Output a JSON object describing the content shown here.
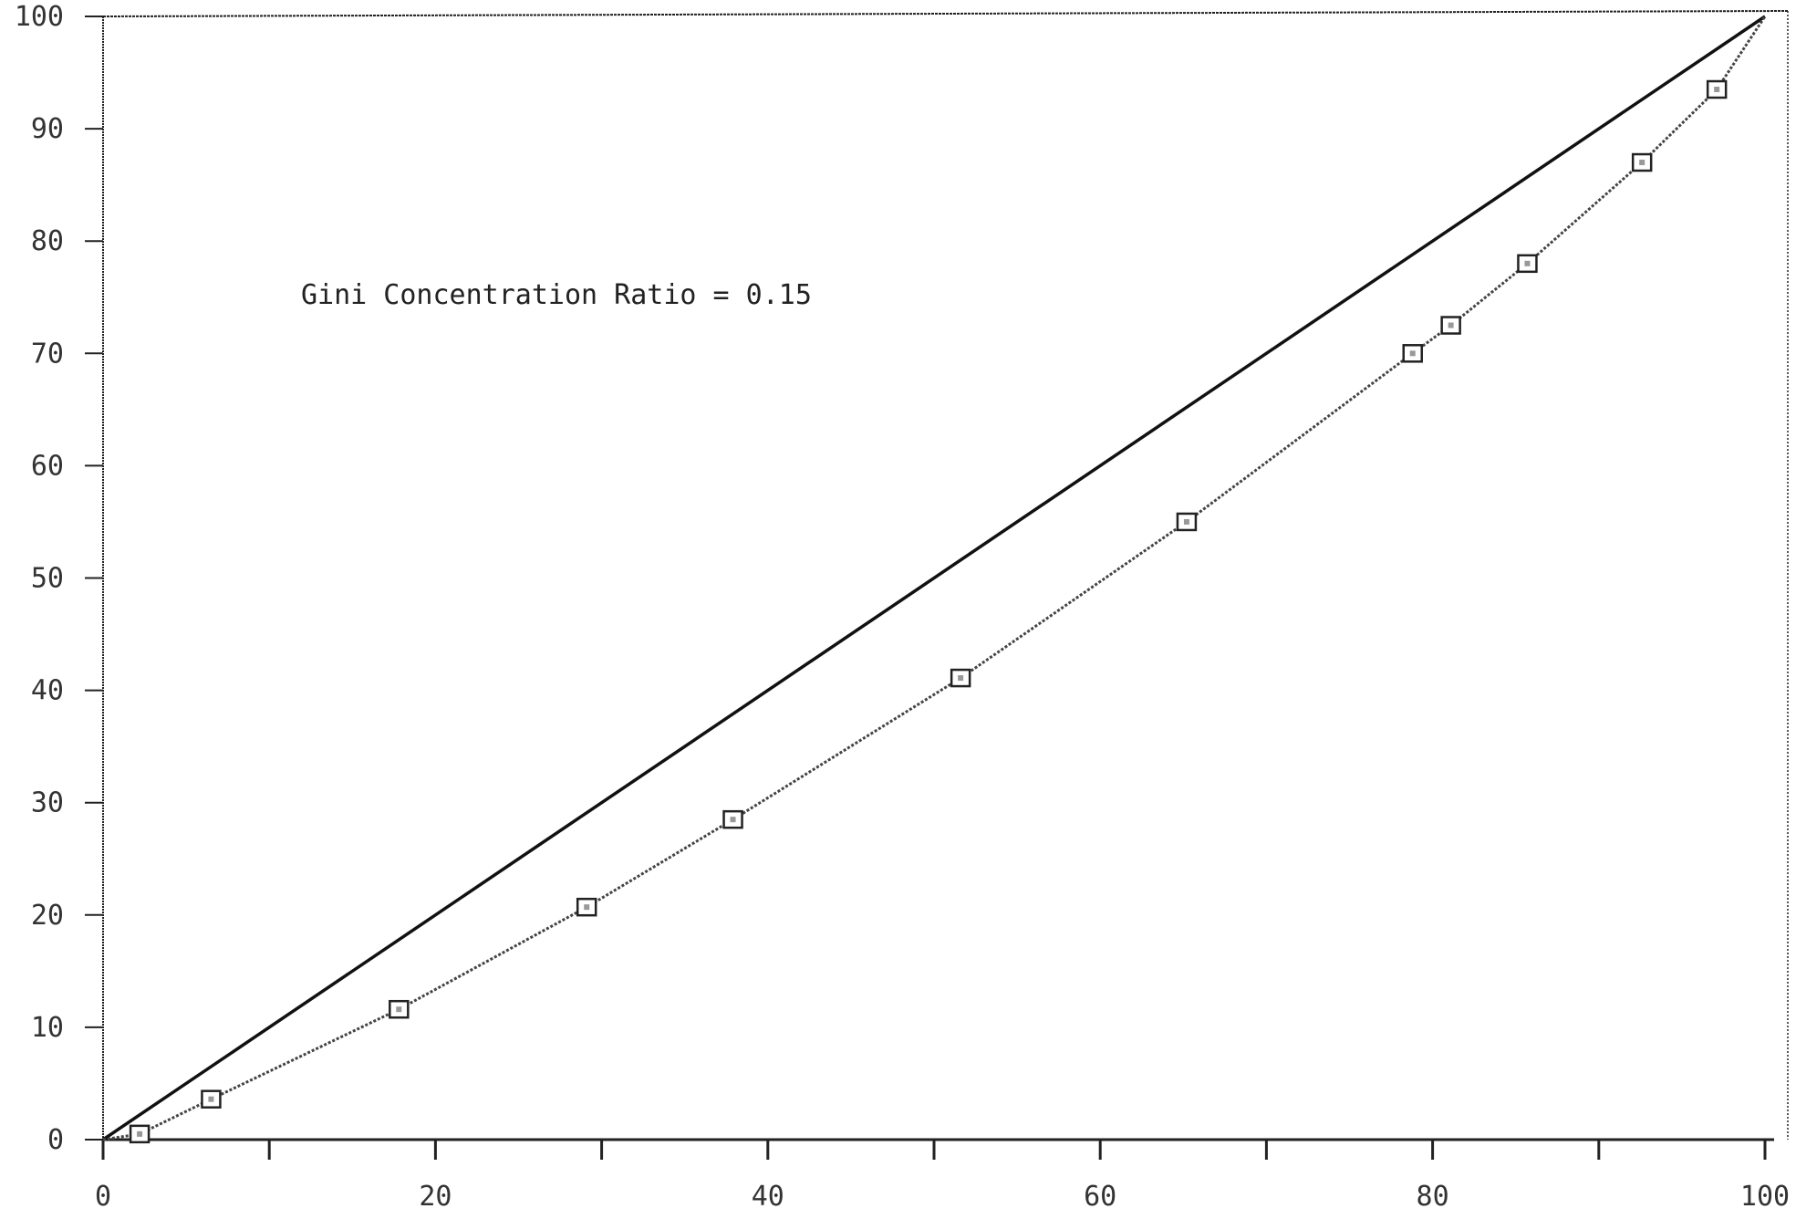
{
  "chart_data": {
    "type": "line",
    "title": "",
    "xlabel": "",
    "ylabel": "",
    "xlim": [
      0,
      100
    ],
    "ylim": [
      0,
      100
    ],
    "grid": false,
    "x_ticks": [
      "0",
      "20",
      "40",
      "60",
      "80",
      "100"
    ],
    "x_tick_values": [
      0,
      20,
      40,
      60,
      80,
      100
    ],
    "x_minor_ticks": [
      10,
      30,
      50,
      70,
      90
    ],
    "y_ticks": [
      "0",
      "10",
      "20",
      "30",
      "40",
      "50",
      "60",
      "70",
      "80",
      "90",
      "100"
    ],
    "y_tick_values": [
      0,
      10,
      20,
      30,
      40,
      50,
      60,
      70,
      80,
      90,
      100
    ],
    "annotation": "Gini Concentration Ratio = 0.15",
    "series": [
      {
        "style": "solid",
        "x": [
          0,
          100
        ],
        "y": [
          0,
          100
        ]
      },
      {
        "style": "dotted",
        "marker": "square",
        "x": [
          0,
          2.2,
          6.5,
          17.8,
          29.1,
          37.9,
          51.6,
          65.2,
          78.8,
          81.1,
          85.7,
          92.6,
          97.1,
          100
        ],
        "y": [
          0,
          0.5,
          3.6,
          11.6,
          20.7,
          28.5,
          41.1,
          55.0,
          70.0,
          72.5,
          78.0,
          87.0,
          93.5,
          100
        ]
      }
    ],
    "colors": {
      "axis": "#222222",
      "equality_line": "#111111",
      "lorenz_line": "#444444",
      "marker": "#222222"
    }
  }
}
